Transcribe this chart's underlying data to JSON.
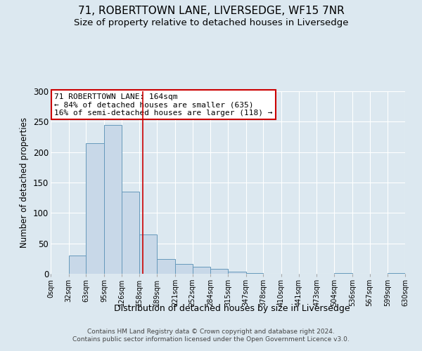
{
  "title": "71, ROBERTTOWN LANE, LIVERSEDGE, WF15 7NR",
  "subtitle": "Size of property relative to detached houses in Liversedge",
  "xlabel": "Distribution of detached houses by size in Liversedge",
  "ylabel": "Number of detached properties",
  "bin_edges": [
    0,
    32,
    63,
    95,
    126,
    158,
    189,
    221,
    252,
    284,
    315,
    347,
    378,
    410,
    441,
    473,
    504,
    536,
    567,
    599,
    630
  ],
  "bar_heights": [
    0,
    30,
    215,
    245,
    135,
    65,
    24,
    16,
    12,
    8,
    3,
    1,
    0,
    0,
    0,
    0,
    1,
    0,
    0,
    1
  ],
  "bar_color": "#c8d8e8",
  "bar_edge_color": "#6699bb",
  "property_size": 164,
  "vline_color": "#cc0000",
  "ylim": [
    0,
    300
  ],
  "yticks": [
    0,
    50,
    100,
    150,
    200,
    250,
    300
  ],
  "tick_labels": [
    "0sqm",
    "32sqm",
    "63sqm",
    "95sqm",
    "126sqm",
    "158sqm",
    "189sqm",
    "221sqm",
    "252sqm",
    "284sqm",
    "315sqm",
    "347sqm",
    "378sqm",
    "410sqm",
    "441sqm",
    "473sqm",
    "504sqm",
    "536sqm",
    "567sqm",
    "599sqm",
    "630sqm"
  ],
  "annotation_title": "71 ROBERTTOWN LANE: 164sqm",
  "annotation_line1": "← 84% of detached houses are smaller (635)",
  "annotation_line2": "16% of semi-detached houses are larger (118) →",
  "annotation_box_color": "#ffffff",
  "annotation_box_edge": "#cc0000",
  "footer_line1": "Contains HM Land Registry data © Crown copyright and database right 2024.",
  "footer_line2": "Contains public sector information licensed under the Open Government Licence v3.0.",
  "background_color": "#dce8f0",
  "plot_background": "#dce8f0",
  "grid_color": "#ffffff",
  "title_fontsize": 11,
  "subtitle_fontsize": 9.5
}
